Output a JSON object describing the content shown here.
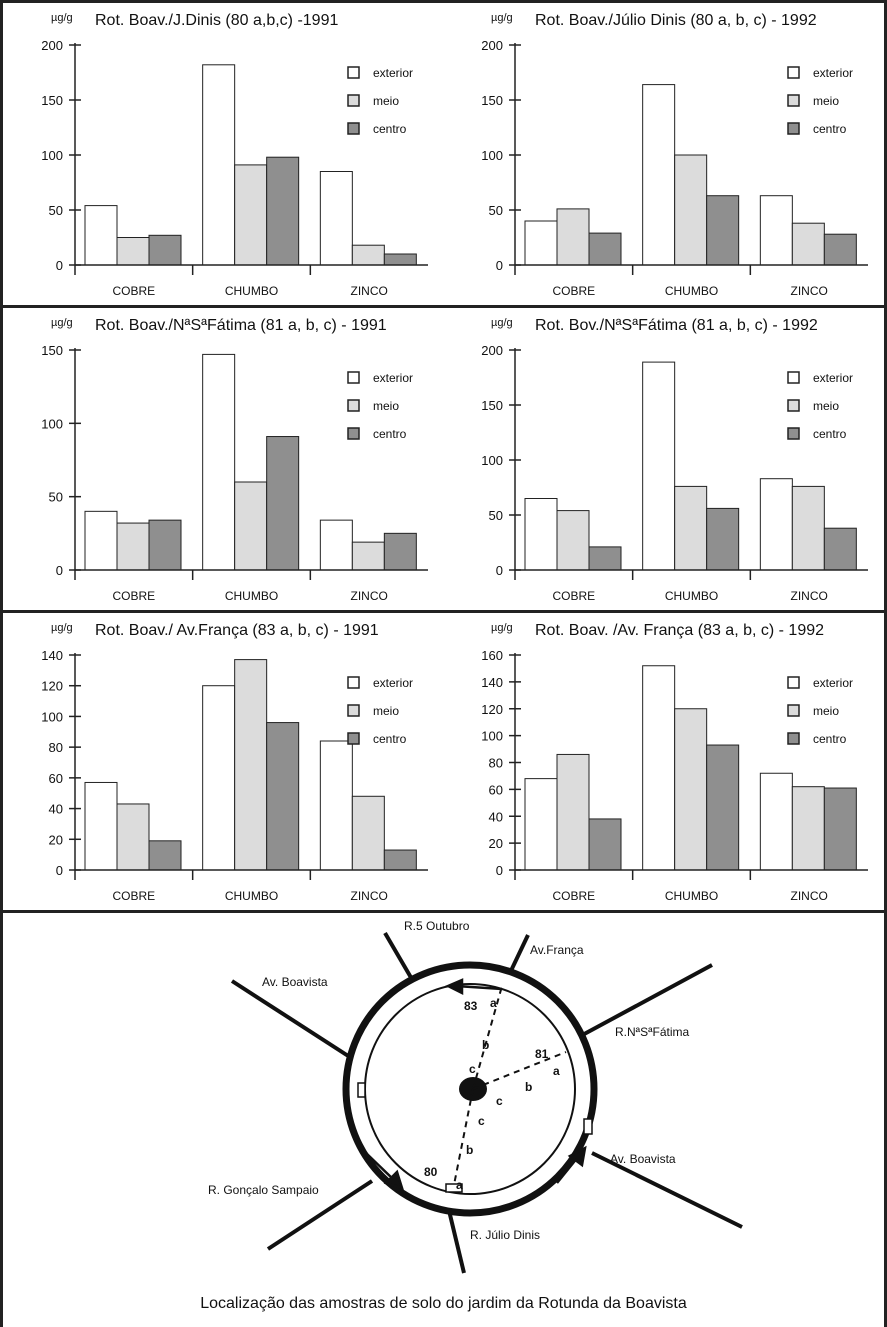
{
  "colors": {
    "exterior": "#ffffff",
    "meio": "#dcdcdc",
    "centro": "#8f8f8f",
    "stroke": "#222222"
  },
  "chart_data": [
    {
      "type": "bar",
      "title": "Rot. Boav./J.Dinis (80 a,b,c) -1991",
      "unit": "µg/g",
      "categories": [
        "COBRE",
        "CHUMBO",
        "ZINCO"
      ],
      "ylim": [
        0,
        200
      ],
      "yticks": [
        0,
        50,
        100,
        150,
        200
      ],
      "legend_position": "top-right",
      "series": [
        {
          "name": "exterior",
          "values": [
            54,
            182,
            85
          ]
        },
        {
          "name": "meio",
          "values": [
            25,
            91,
            18
          ]
        },
        {
          "name": "centro",
          "values": [
            27,
            98,
            10
          ]
        }
      ]
    },
    {
      "type": "bar",
      "title": "Rot. Boav./Júlio Dinis (80 a, b, c) - 1992",
      "unit": "µg/g",
      "categories": [
        "COBRE",
        "CHUMBO",
        "ZINCO"
      ],
      "ylim": [
        0,
        200
      ],
      "yticks": [
        0,
        50,
        100,
        150,
        200
      ],
      "legend_position": "top-right",
      "series": [
        {
          "name": "exterior",
          "values": [
            40,
            164,
            63
          ]
        },
        {
          "name": "meio",
          "values": [
            51,
            100,
            38
          ]
        },
        {
          "name": "centro",
          "values": [
            29,
            63,
            28
          ]
        }
      ]
    },
    {
      "type": "bar",
      "title": "Rot. Boav./NªSªFátima (81 a, b, c) - 1991",
      "unit": "µg/g",
      "categories": [
        "COBRE",
        "CHUMBO",
        "ZINCO"
      ],
      "ylim": [
        0,
        150
      ],
      "yticks": [
        0,
        50,
        100,
        150
      ],
      "legend_position": "top-right",
      "series": [
        {
          "name": "exterior",
          "values": [
            40,
            147,
            34
          ]
        },
        {
          "name": "meio",
          "values": [
            32,
            60,
            19
          ]
        },
        {
          "name": "centro",
          "values": [
            34,
            91,
            25
          ]
        }
      ]
    },
    {
      "type": "bar",
      "title": "Rot. Bov./NªSªFátima (81 a, b, c) - 1992",
      "unit": "µg/g",
      "categories": [
        "COBRE",
        "CHUMBO",
        "ZINCO"
      ],
      "ylim": [
        0,
        200
      ],
      "yticks": [
        0,
        50,
        100,
        150,
        200
      ],
      "legend_position": "top-right",
      "series": [
        {
          "name": "exterior",
          "values": [
            65,
            189,
            83
          ]
        },
        {
          "name": "meio",
          "values": [
            54,
            76,
            76
          ]
        },
        {
          "name": "centro",
          "values": [
            21,
            56,
            38
          ]
        }
      ]
    },
    {
      "type": "bar",
      "title": "Rot. Boav./ Av.França (83 a, b, c) - 1991",
      "unit": "µg/g",
      "categories": [
        "COBRE",
        "CHUMBO",
        "ZINCO"
      ],
      "ylim": [
        0,
        140
      ],
      "yticks": [
        0,
        20,
        40,
        60,
        80,
        100,
        120,
        140
      ],
      "legend_position": "top-right",
      "series": [
        {
          "name": "exterior",
          "values": [
            57,
            120,
            84
          ]
        },
        {
          "name": "meio",
          "values": [
            43,
            137,
            48
          ]
        },
        {
          "name": "centro",
          "values": [
            19,
            96,
            13
          ]
        }
      ]
    },
    {
      "type": "bar",
      "title": "Rot. Boav. /Av. França (83 a, b, c) - 1992",
      "unit": "µg/g",
      "categories": [
        "COBRE",
        "CHUMBO",
        "ZINCO"
      ],
      "ylim": [
        0,
        160
      ],
      "yticks": [
        0,
        20,
        40,
        60,
        80,
        100,
        120,
        140,
        160
      ],
      "legend_position": "top-right",
      "series": [
        {
          "name": "exterior",
          "values": [
            68,
            152,
            72
          ]
        },
        {
          "name": "meio",
          "values": [
            86,
            120,
            62
          ]
        },
        {
          "name": "centro",
          "values": [
            38,
            93,
            61
          ]
        }
      ]
    }
  ],
  "map": {
    "streets": {
      "r5_outubro": "R.5 Outubro",
      "av_franca": "Av.França",
      "av_boavista_top": "Av. Boavista",
      "r_nsa_fatima": "R.NªSªFátima",
      "av_boavista_right": "Av. Boavista",
      "r_goncalo_sampaio": "R. Gonçalo Sampaio",
      "r_julio_dinis": "R. Júlio Dinis"
    },
    "sites": [
      "83",
      "81",
      "80"
    ],
    "points": [
      "a",
      "b",
      "c"
    ]
  },
  "caption": "Localização das amostras de solo do jardim da Rotunda da Boavista"
}
